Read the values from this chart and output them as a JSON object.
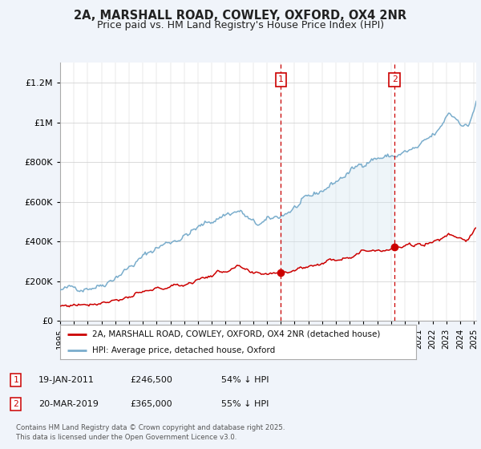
{
  "title": "2A, MARSHALL ROAD, COWLEY, OXFORD, OX4 2NR",
  "subtitle": "Price paid vs. HM Land Registry's House Price Index (HPI)",
  "ylim": [
    0,
    1300000
  ],
  "yticks": [
    0,
    200000,
    400000,
    600000,
    800000,
    1000000,
    1200000
  ],
  "hpi_color": "#7aadcc",
  "hpi_fill_color": "#d0e4f0",
  "price_color": "#cc0000",
  "background_color": "#f0f4fa",
  "plot_bg_color": "#ffffff",
  "marker1_idx": 192,
  "marker2_idx": 291,
  "marker1_date": "19-JAN-2011",
  "marker1_price": "£246,500",
  "marker1_hpi_text": "54% ↓ HPI",
  "marker2_date": "20-MAR-2019",
  "marker2_price": "£365,000",
  "marker2_hpi_text": "55% ↓ HPI",
  "legend_line1": "2A, MARSHALL ROAD, COWLEY, OXFORD, OX4 2NR (detached house)",
  "legend_line2": "HPI: Average price, detached house, Oxford",
  "footnote": "Contains HM Land Registry data © Crown copyright and database right 2025.\nThis data is licensed under the Open Government Licence v3.0.",
  "title_fontsize": 10.5,
  "subtitle_fontsize": 9
}
